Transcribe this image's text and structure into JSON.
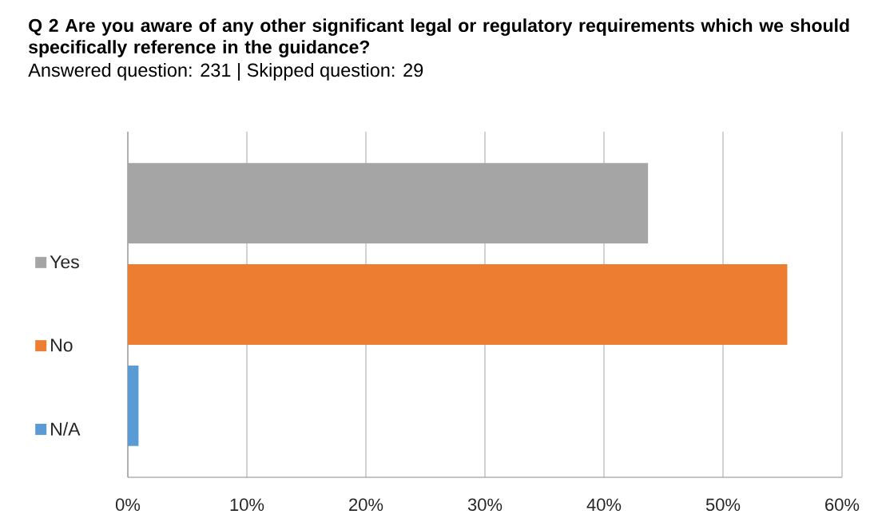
{
  "chart_data": {
    "type": "bar",
    "orientation": "horizontal",
    "title": "Q 2 Are you aware of any other significant legal or regulatory requirements which we should specifically reference in the guidance?",
    "subtitle": "Answered question: 231 | Skipped question: 29",
    "categories": [
      null
    ],
    "series": [
      {
        "name": "Yes",
        "color": "#a5a5a5",
        "values": [
          43.7
        ]
      },
      {
        "name": "No",
        "color": "#ed7d31",
        "values": [
          55.4
        ]
      },
      {
        "name": "N/A",
        "color": "#5b9bd5",
        "values": [
          0.9
        ]
      }
    ],
    "xlim": [
      0,
      60
    ],
    "xticks": [
      {
        "value": 0,
        "label": "0%"
      },
      {
        "value": 10,
        "label": "10%"
      },
      {
        "value": 20,
        "label": "20%"
      },
      {
        "value": 30,
        "label": "30%"
      },
      {
        "value": 40,
        "label": "40%"
      },
      {
        "value": 50,
        "label": "50%"
      },
      {
        "value": 60,
        "label": "60%"
      }
    ],
    "grid": "x",
    "legend": "left"
  }
}
